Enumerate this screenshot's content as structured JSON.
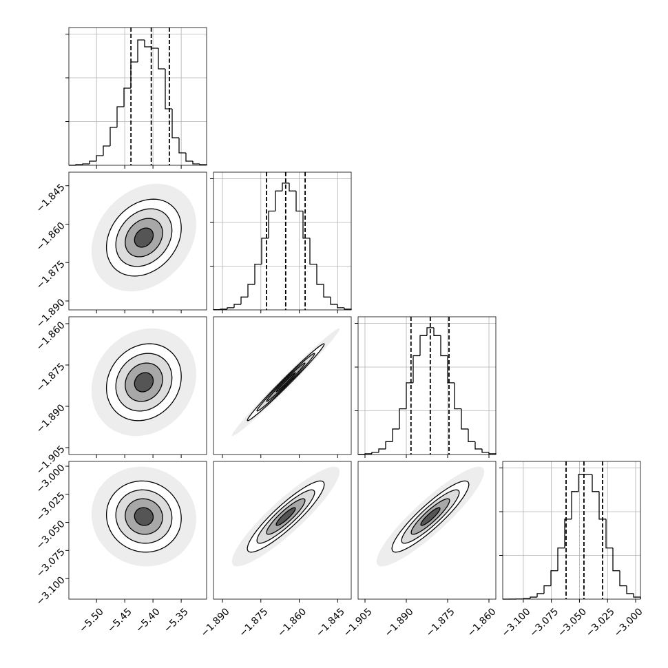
{
  "chart_data": {
    "type": "corner",
    "color": "#000000",
    "grid": true,
    "parameters": [
      {
        "xlim": [
          -5.549,
          -5.305
        ],
        "xticks": [
          {
            "value": -5.5,
            "label": "−5.50"
          },
          {
            "value": -5.45,
            "label": "−5.45"
          },
          {
            "value": -5.4,
            "label": "−5.40"
          },
          {
            "value": -5.35,
            "label": "−5.35"
          }
        ],
        "bins": [
          -5.549,
          -5.5368,
          -5.5246,
          -5.5124,
          -5.5002,
          -5.488,
          -5.4758,
          -5.4636,
          -5.4514,
          -5.4392,
          -5.427,
          -5.4148,
          -5.4026,
          -5.3904,
          -5.3782,
          -5.366,
          -5.3538,
          -5.3416,
          -5.3294,
          -5.3172,
          -5.305
        ],
        "counts": [
          0,
          16,
          32,
          95,
          220,
          441,
          866,
          1339,
          1764,
          2362,
          2866,
          2709,
          2677,
          2205,
          1292,
          630,
          284,
          95,
          32,
          16
        ],
        "hist_ylim": [
          0,
          3150
        ],
        "hist_yticks": [
          1000,
          2000,
          3000
        ],
        "quantiles": [
          -5.439,
          -5.403,
          -5.371
        ]
      },
      {
        "xlim": [
          -1.8935,
          -1.8397
        ],
        "xticks": [
          {
            "value": -1.89,
            "label": "−1.890"
          },
          {
            "value": -1.875,
            "label": "−1.875"
          },
          {
            "value": -1.86,
            "label": "−1.860"
          },
          {
            "value": -1.845,
            "label": "−1.845"
          }
        ],
        "bins": [
          -1.8935,
          -1.89081,
          -1.88812,
          -1.88543,
          -1.88274,
          -1.88005,
          -1.87736,
          -1.87467,
          -1.87198,
          -1.86929,
          -1.8666,
          -1.86391,
          -1.86122,
          -1.85853,
          -1.85584,
          -1.85315,
          -1.85046,
          -1.84777,
          -1.84508,
          -1.84239,
          -1.8397
        ],
        "counts": [
          5,
          17,
          49,
          127,
          294,
          584,
          1045,
          1640,
          2260,
          2720,
          2900,
          2720,
          2260,
          1640,
          1045,
          584,
          294,
          127,
          49,
          17
        ],
        "hist_ylim": [
          0,
          3150
        ],
        "hist_yticks": [
          1000,
          2000,
          3000
        ],
        "quantiles": [
          -1.8728,
          -1.8653,
          -1.8577
        ]
      },
      {
        "xlim": [
          -1.9075,
          -1.8575
        ],
        "xticks": [
          {
            "value": -1.905,
            "label": "−1.905"
          },
          {
            "value": -1.89,
            "label": "−1.890"
          },
          {
            "value": -1.875,
            "label": "−1.875"
          },
          {
            "value": -1.86,
            "label": "−1.860"
          }
        ],
        "bins": [
          -1.9075,
          -1.905,
          -1.9025,
          -1.9,
          -1.8975,
          -1.895,
          -1.8925,
          -1.89,
          -1.8875,
          -1.885,
          -1.8825,
          -1.88,
          -1.8775,
          -1.875,
          -1.8725,
          -1.87,
          -1.8675,
          -1.865,
          -1.8625,
          -1.86,
          -1.8575
        ],
        "counts": [
          5,
          17,
          49,
          127,
          294,
          584,
          1045,
          1640,
          2260,
          2720,
          2900,
          2720,
          2260,
          1640,
          1045,
          584,
          294,
          127,
          49,
          17
        ],
        "hist_ylim": [
          0,
          3150
        ],
        "hist_yticks": [
          1000,
          2000,
          3000
        ],
        "quantiles": [
          -1.8883,
          -1.8813,
          -1.8745
        ]
      },
      {
        "xlim": [
          -3.1183,
          -2.9957
        ],
        "xticks": [
          {
            "value": -3.1,
            "label": "−3.100"
          },
          {
            "value": -3.075,
            "label": "−3.075"
          },
          {
            "value": -3.05,
            "label": "−3.050"
          },
          {
            "value": -3.025,
            "label": "−3.025"
          },
          {
            "value": -3.0,
            "label": "−3.000"
          }
        ],
        "bins": [
          -3.1183,
          -3.11217,
          -3.10604,
          -3.09991,
          -3.09378,
          -3.08765,
          -3.08152,
          -3.07539,
          -3.06926,
          -3.06313,
          -3.057,
          -3.05087,
          -3.04474,
          -3.03861,
          -3.03248,
          -3.02635,
          -3.02022,
          -3.01409,
          -3.00796,
          -3.00183,
          -2.9957
        ],
        "counts": [
          0,
          1,
          4,
          14,
          46,
          127,
          305,
          650,
          1170,
          1830,
          2460,
          2850,
          2850,
          2460,
          1830,
          1170,
          650,
          305,
          127,
          46
        ],
        "hist_ylim": [
          0,
          3150
        ],
        "hist_yticks": [
          1000,
          2000,
          3000
        ],
        "quantiles": [
          -3.0619,
          -3.046,
          -3.0294
        ]
      }
    ],
    "correlations": [
      [
        1,
        0.25,
        0.15,
        -0.05
      ],
      [
        0.25,
        1,
        0.99,
        0.9
      ],
      [
        0.15,
        0.99,
        1,
        0.9
      ],
      [
        -0.05,
        0.9,
        0.9,
        1
      ]
    ]
  }
}
